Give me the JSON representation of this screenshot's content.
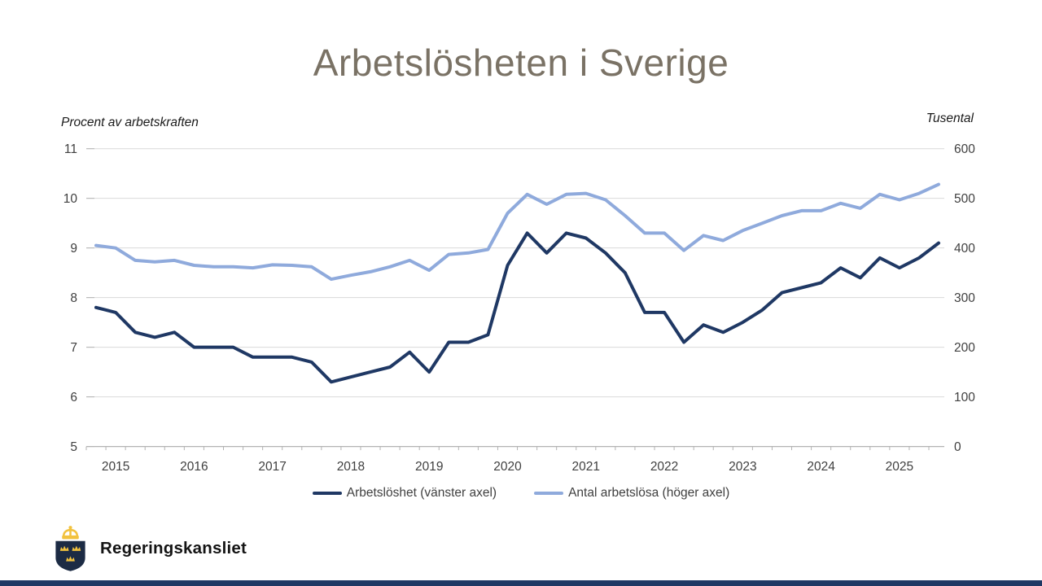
{
  "title": "Arbetslösheten i Sverige",
  "left_axis": {
    "caption": "Procent av arbetskraften"
  },
  "right_axis": {
    "caption": "Tusental"
  },
  "legend": [
    {
      "label": "Arbetslöshet (vänster axel)",
      "color": "#1f3864"
    },
    {
      "label": "Antal arbetslösa (höger axel)",
      "color": "#8faadc"
    }
  ],
  "footer": {
    "logo_text": "Regeringskansliet"
  },
  "colors": {
    "title": "#7a7265",
    "dark_line": "#1f3864",
    "light_line": "#8faadc",
    "gridline": "#d9d9d9",
    "axis": "#b3b3b3",
    "tick_text": "#404040",
    "bottom_bar": "#1f3864",
    "logo_shield": "#1c2b44",
    "logo_gold": "#f2c23e"
  },
  "chart_data": {
    "type": "line",
    "title": "Arbetslösheten i Sverige",
    "x_frequency": "quarterly",
    "x_start": "2014 Q4",
    "x_end": "2025 Q3",
    "x_tick_labels": [
      "2015",
      "2016",
      "2017",
      "2018",
      "2019",
      "2020",
      "2021",
      "2022",
      "2023",
      "2024",
      "2025"
    ],
    "left_ticks": [
      5,
      6,
      7,
      8,
      9,
      10,
      11
    ],
    "right_ticks": [
      0,
      100,
      200,
      300,
      400,
      500,
      600
    ],
    "left_ylim": [
      5,
      11
    ],
    "right_ylim": [
      0,
      600
    ],
    "grid": true,
    "legend_position": "bottom",
    "series": [
      {
        "name": "Arbetslöshet (vänster axel)",
        "axis": "left",
        "unit": "percent of labour force",
        "color": "#1f3864",
        "values": [
          7.8,
          7.7,
          7.3,
          7.2,
          7.3,
          7.0,
          7.0,
          7.0,
          6.8,
          6.8,
          6.8,
          6.7,
          6.3,
          6.4,
          6.5,
          6.6,
          6.9,
          6.5,
          7.1,
          7.1,
          7.25,
          8.65,
          9.3,
          8.9,
          9.3,
          9.2,
          8.9,
          8.5,
          7.7,
          7.7,
          7.1,
          7.45,
          7.3,
          7.5,
          7.75,
          8.1,
          8.2,
          8.3,
          8.6,
          8.4,
          8.8,
          8.6,
          8.8,
          9.1
        ]
      },
      {
        "name": "Antal arbetslösa (höger axel)",
        "axis": "right",
        "unit": "thousands",
        "color": "#8faadc",
        "values": [
          405,
          400,
          375,
          372,
          375,
          365,
          362,
          362,
          360,
          366,
          365,
          362,
          337,
          345,
          352,
          362,
          375,
          355,
          387,
          390,
          397,
          470,
          508,
          488,
          508,
          510,
          497,
          465,
          430,
          430,
          395,
          425,
          415,
          435,
          450,
          465,
          475,
          475,
          490,
          480,
          508,
          497,
          510,
          528
        ]
      }
    ]
  }
}
